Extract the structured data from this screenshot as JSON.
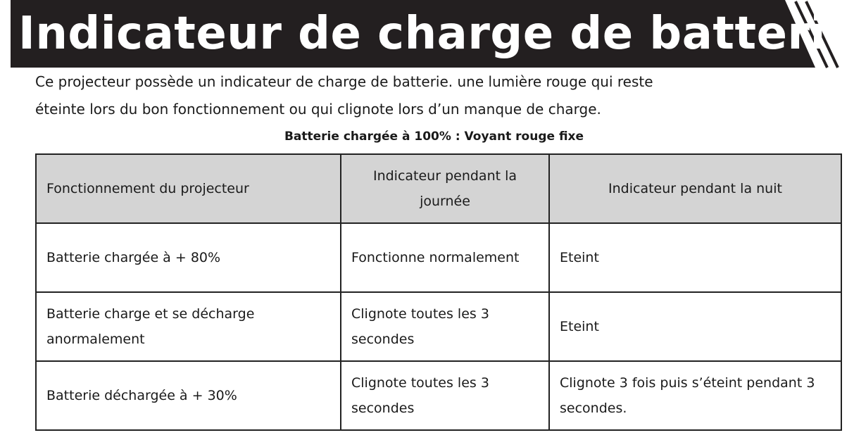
{
  "title": "Indicateur de charge de batterie",
  "intro_lines": [
    "Ce projecteur possède un indicateur de charge de batterie. une lumière rouge qui reste",
    "éteinte lors du bon fonctionnement ou qui clignote lors d’un manque de charge."
  ],
  "subtitle": "Batterie chargée à 100% : Voyant rouge fixe",
  "table": {
    "headers": [
      "Fonctionnement du projecteur",
      "Indicateur pendant la journée",
      "Indicateur pendant la nuit"
    ],
    "rows": [
      [
        "Batterie chargée à + 80%",
        "Fonctionne normalement",
        "Eteint"
      ],
      [
        "Batterie charge et se décharge anormalement",
        "Clignote toutes les 3 secondes",
        "Eteint"
      ],
      [
        "Batterie déchargée à + 30%",
        "Clignote toutes les 3 secondes",
        "Clignote 3 fois puis s’éteint pendant 3 secondes."
      ]
    ]
  },
  "colors": {
    "banner": "#231f20",
    "header_bg": "#d4d4d4"
  }
}
